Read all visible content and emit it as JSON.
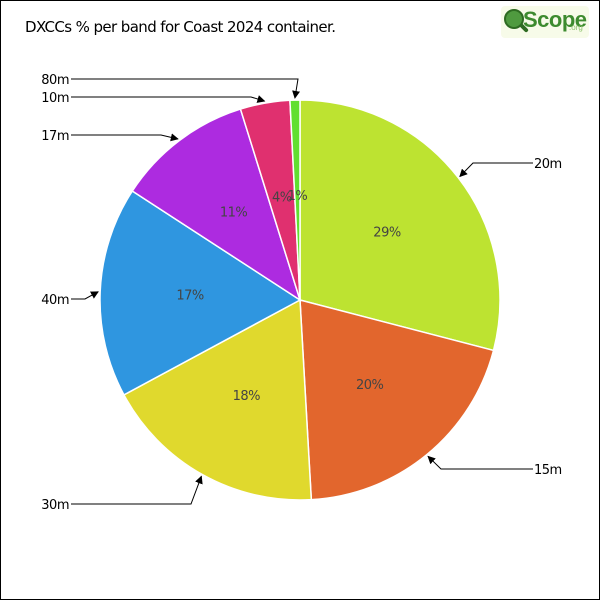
{
  "chart_data": {
    "type": "pie",
    "title": "DXCCs % per band for Coast 2024 container.",
    "slices": [
      {
        "label": "20m",
        "value": 29,
        "pct_label": "29%",
        "color": "#bde331"
      },
      {
        "label": "15m",
        "value": 20,
        "pct_label": "20%",
        "color": "#e2662d"
      },
      {
        "label": "30m",
        "value": 18,
        "pct_label": "18%",
        "color": "#e0d92d"
      },
      {
        "label": "40m",
        "value": 17,
        "pct_label": "17%",
        "color": "#2f96e0"
      },
      {
        "label": "17m",
        "value": 11,
        "pct_label": "11%",
        "color": "#ad2be0"
      },
      {
        "label": "10m",
        "value": 4,
        "pct_label": "4%",
        "color": "#e0306f"
      },
      {
        "label": "80m",
        "value": 0.8,
        "pct_label": "1%",
        "color": "#61df2f"
      }
    ]
  },
  "logo": {
    "word": "Scope",
    "tld": ".org"
  }
}
